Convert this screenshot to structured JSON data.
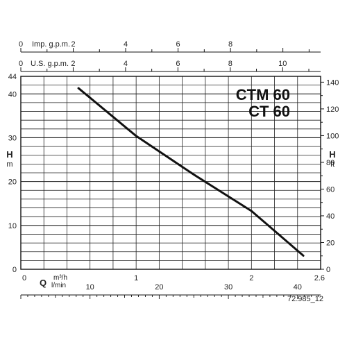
{
  "chart_data": {
    "type": "line",
    "title_lines": [
      "CTM 60",
      "CT 60"
    ],
    "left_axis": {
      "label": "H",
      "unit": "m",
      "range": [
        0,
        44
      ],
      "ticks": [
        "0",
        "10",
        "20",
        "30",
        "40",
        "44"
      ]
    },
    "right_axis": {
      "label": "H",
      "unit": "ft",
      "range": [
        0,
        144.36
      ],
      "ticks": [
        "0",
        "20",
        "40",
        "60",
        "80",
        "100",
        "120",
        "140"
      ]
    },
    "top_axis_imp": {
      "label": "Imp. g.p.m.",
      "range": [
        0,
        11.44
      ],
      "ticks": [
        "0",
        "2",
        "4",
        "6",
        "8"
      ]
    },
    "top_axis_us": {
      "label": "U.S. g.p.m.",
      "range": [
        0,
        11.45
      ],
      "ticks": [
        "0",
        "2",
        "4",
        "6",
        "8",
        "10"
      ]
    },
    "bottom_axis_m3h": {
      "label": "Q",
      "unit": "m³/h",
      "range": [
        0,
        2.6
      ],
      "ticks": [
        "0",
        "1",
        "2",
        "2.6"
      ]
    },
    "bottom_axis_lmin": {
      "unit": "l/min",
      "range": [
        0,
        43.33
      ],
      "ticks": [
        "10",
        "20",
        "30",
        "40"
      ]
    },
    "grid": true,
    "series": [
      {
        "x_m3h": [
          0.5,
          1.0,
          1.5,
          2.0,
          2.45
        ],
        "y_m": [
          41.3,
          30.4,
          21.6,
          13.3,
          3.1
        ]
      }
    ],
    "footnote": "72.985_12"
  },
  "colors": {
    "line": "#111111",
    "grid": "#222222"
  }
}
